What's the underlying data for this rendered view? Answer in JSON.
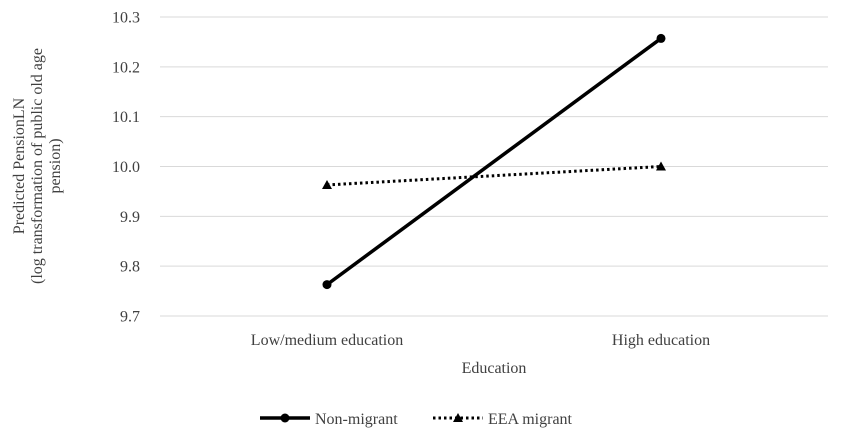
{
  "chart_data": {
    "type": "line",
    "title": "",
    "xlabel": "Education",
    "ylabel_lines": [
      "Predicted PensionLN",
      "(log transformation of public old age",
      "pension)"
    ],
    "categories": [
      "Low/medium education",
      "High education"
    ],
    "ylim": [
      9.7,
      10.3
    ],
    "yticks": [
      "9.7",
      "9.8",
      "9.9",
      "10.0",
      "10.1",
      "10.2",
      "10.3"
    ],
    "grid": true,
    "legend_position": "bottom",
    "series": [
      {
        "name": "Non-migrant",
        "values": [
          9.763,
          10.257
        ],
        "style": "solid",
        "marker": "circle",
        "color": "#000000"
      },
      {
        "name": "EEA migrant",
        "values": [
          9.963,
          10.0
        ],
        "style": "dotted",
        "marker": "triangle",
        "color": "#000000"
      }
    ]
  }
}
